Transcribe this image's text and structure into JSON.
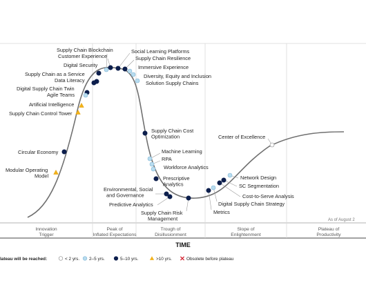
{
  "chart_data": {
    "type": "scatter",
    "xlabel": "TIME",
    "as_of": "As of August 2",
    "phases": [
      "Innovation Trigger",
      "Peak of Inflated Expectations",
      "Trough of Disillusionment",
      "Slope of Enlightenment",
      "Plateau of Productivity"
    ],
    "legend": {
      "title": "lateau will be reached:",
      "items": [
        {
          "label": "< 2 yrs.",
          "kind": "lt2"
        },
        {
          "label": "2–5 yrs.",
          "kind": "2to5"
        },
        {
          "label": "5–10 yrs.",
          "kind": "5to10"
        },
        {
          "label": ">10 yrs.",
          "kind": "gt10"
        },
        {
          "label": "Obsolete before plateau",
          "kind": "obsolete"
        }
      ]
    },
    "marker_colors": {
      "lt2": "#ffffff",
      "2to5": "#b8dcef",
      "5to10": "#0d1f4d",
      "gt10": "#f2b21b",
      "obsolete": "#d3212f"
    },
    "points": [
      {
        "name": "Supply Chain Blockchain",
        "kind": "2to5"
      },
      {
        "name": "Customer Experience",
        "kind": "5to10"
      },
      {
        "name": "Digital Security",
        "kind": "5to10"
      },
      {
        "name": "Supply Chain as a Service",
        "kind": "5to10"
      },
      {
        "name": "Data Literacy",
        "kind": "5to10"
      },
      {
        "name": "Digital Supply Chain Twin",
        "kind": "5to10"
      },
      {
        "name": "Agile Teams",
        "kind": "2to5"
      },
      {
        "name": "Artificial Intelligence",
        "kind": "gt10"
      },
      {
        "name": "Supply Chain Control Tower",
        "kind": "gt10"
      },
      {
        "name": "Circular Economy",
        "kind": "5to10"
      },
      {
        "name": "Modular Operating Model",
        "kind": "gt10"
      },
      {
        "name": "Social Learning Platforms",
        "kind": "5to10"
      },
      {
        "name": "Supply Chain Resilience",
        "kind": "5to10"
      },
      {
        "name": "Immersive Experience",
        "kind": "2to5"
      },
      {
        "name": "Diversity, Equity and Inclusion",
        "kind": "2to5"
      },
      {
        "name": "Solution Supply Chains",
        "kind": "2to5"
      },
      {
        "name": "Supply Chain Cost Optimization",
        "kind": "5to10"
      },
      {
        "name": "Machine Learning",
        "kind": "2to5"
      },
      {
        "name": "RPA",
        "kind": "2to5"
      },
      {
        "name": "Workforce Analytics",
        "kind": "2to5"
      },
      {
        "name": "Prescriptive Analytics",
        "kind": "5to10"
      },
      {
        "name": "Environmental, Social and Governance",
        "kind": "5to10"
      },
      {
        "name": "Predictive Analytics",
        "kind": "5to10"
      },
      {
        "name": "Supply Chain Risk Management",
        "kind": "5to10"
      },
      {
        "name": "Metrics",
        "kind": "5to10"
      },
      {
        "name": "Digital Supply Chain Strategy",
        "kind": "2to5"
      },
      {
        "name": "Cost-to-Serve Analysis",
        "kind": "5to10"
      },
      {
        "name": "SC Segmentation",
        "kind": "5to10"
      },
      {
        "name": "Network Design",
        "kind": "2to5"
      },
      {
        "name": "Center of Excellence",
        "kind": "lt2"
      }
    ]
  }
}
